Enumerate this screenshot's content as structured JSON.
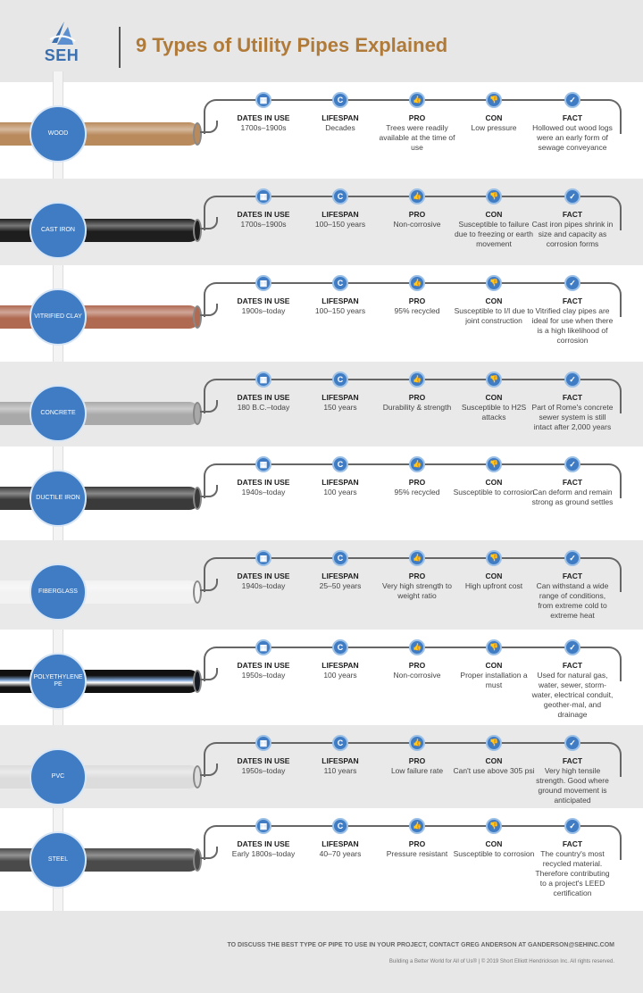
{
  "header": {
    "logo_text": "SEH",
    "title": "9 Types of Utility Pipes Explained"
  },
  "column_labels": [
    "DATES IN USE",
    "LIFESPAN",
    "PRO",
    "CON",
    "FACT"
  ],
  "column_icons": [
    "calendar-icon",
    "lifespan-cycle-icon",
    "thumbs-up-icon",
    "thumbs-down-icon",
    "checkmark-icon"
  ],
  "colors": {
    "accent_blue": "#3f7cc4",
    "title_brown": "#b07a38",
    "band_gray": "#e9e9ea"
  },
  "pipes": [
    {
      "name": "WOOD",
      "pipe_color": "#b98a5c",
      "values": [
        "1700s–1900s",
        "Decades",
        "Trees were readily available at the time of use",
        "Low pressure",
        "Hollowed out wood logs were an early form of sewage conveyance"
      ]
    },
    {
      "name": "CAST IRON",
      "pipe_color": "#1e1e1e",
      "values": [
        "1700s–1900s",
        "100–150 years",
        "Non-corrosive",
        "Susceptible to failure due to freezing or earth movement",
        "Cast iron pipes shrink in size and capacity as corrosion forms"
      ]
    },
    {
      "name": "VITRIFIED CLAY",
      "pipe_color": "#b06a52",
      "values": [
        "1900s–today",
        "100–150 years",
        "95% recycled",
        "Susceptible to I/I due to joint construction",
        "Vitrified clay pipes are ideal for use when there is a high likelihood of corrosion"
      ]
    },
    {
      "name": "CONCRETE",
      "pipe_color": "#a9a9a9",
      "values": [
        "180 B.C.–today",
        "150 years",
        "Durability & strength",
        "Susceptible to H2S attacks",
        "Part of Rome's concrete sewer system is still intact after 2,000 years"
      ]
    },
    {
      "name": "DUCTILE IRON",
      "pipe_color": "#3a3a3a",
      "values": [
        "1940s–today",
        "100 years",
        "95% recycled",
        "Susceptible to corrosion",
        "Can deform and remain strong as ground settles"
      ]
    },
    {
      "name": "FIBERGLASS",
      "pipe_color": "#f2f2f2",
      "values": [
        "1940s–today",
        "25–50 years",
        "Very high strength to weight ratio",
        "High upfront cost",
        "Can withstand a wide range of conditions, from extreme cold to extreme heat"
      ]
    },
    {
      "name": "POLYETHYLENE PE",
      "pipe_color": "#151a22",
      "values": [
        "1950s–today",
        "100 years",
        "Non-corrosive",
        "Proper installation a must",
        "Used for natural gas, water, sewer, storm-water, electrical conduit, geother-mal, and drainage"
      ]
    },
    {
      "name": "PVC",
      "pipe_color": "#dcdcdc",
      "values": [
        "1950s–today",
        "110 years",
        "Low failure rate",
        "Can't use above 305 psi",
        "Very high tensile strength. Good where ground movement is anticipated"
      ]
    },
    {
      "name": "STEEL",
      "pipe_color": "#4a4a4a",
      "values": [
        "Early 1800s–today",
        "40–70 years",
        "Pressure resistant",
        "Susceptible to corrosion",
        "The country's most recycled material. Therefore contributing to a project's LEED certification"
      ]
    }
  ],
  "footer": {
    "cta": "TO DISCUSS THE BEST TYPE OF PIPE TO USE IN YOUR PROJECT, CONTACT GREG ANDERSON AT GANDERSON@SEHINC.COM",
    "copyright": "Building a Better World for All of Us® | © 2019 Short Elliott Hendrickson Inc. All rights reserved."
  }
}
